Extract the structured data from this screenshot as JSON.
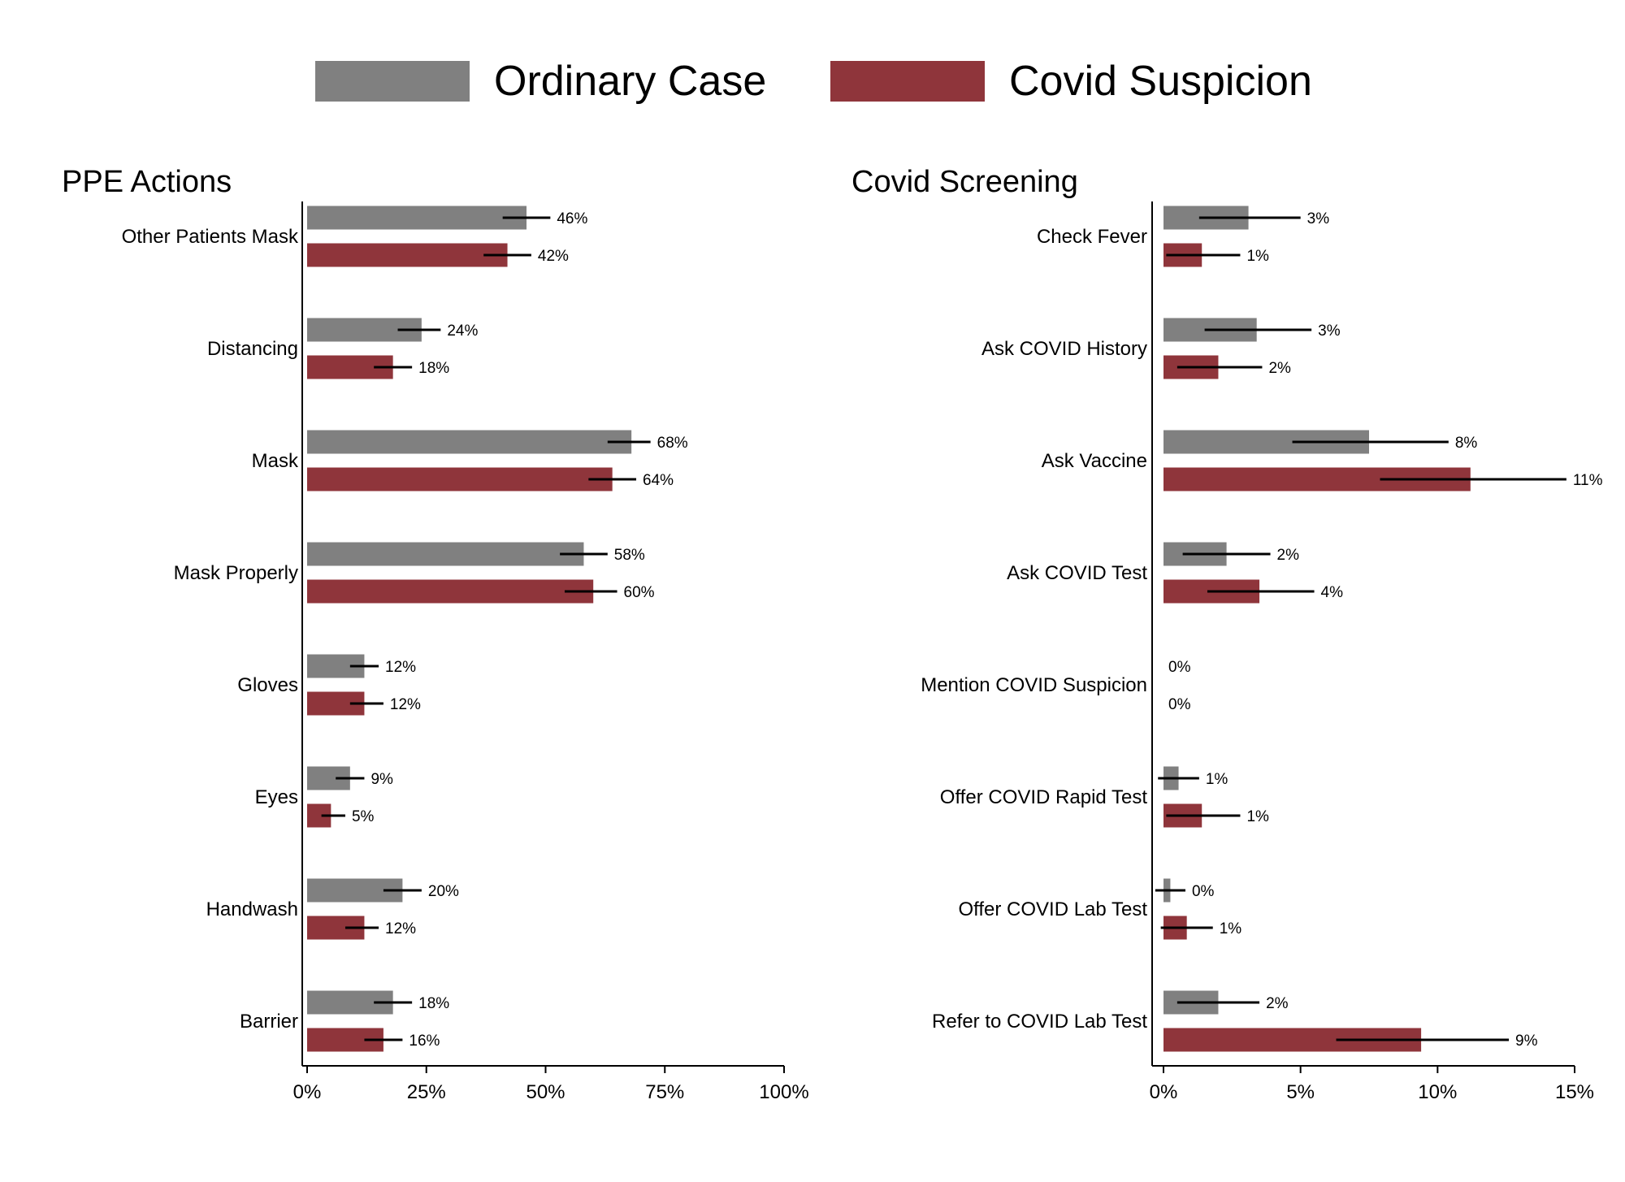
{
  "legend": {
    "items": [
      {
        "label": "Ordinary Case",
        "color": "#808080"
      },
      {
        "label": "Covid Suspicion",
        "color": "#8f353b"
      }
    ]
  },
  "chart_data": [
    {
      "type": "bar",
      "orientation": "horizontal",
      "title": "PPE Actions",
      "categories": [
        "Other Patients Mask",
        "Distancing",
        "Mask",
        "Mask Properly",
        "Gloves",
        "Eyes",
        "Handwash",
        "Barrier"
      ],
      "xlim": [
        0,
        100
      ],
      "xticks": [
        "0%",
        "25%",
        "50%",
        "75%",
        "100%"
      ],
      "series": [
        {
          "name": "Ordinary Case",
          "color": "#808080",
          "values": [
            46,
            24,
            68,
            58,
            12,
            9,
            20,
            18
          ],
          "labels": [
            "46%",
            "24%",
            "68%",
            "58%",
            "12%",
            "9%",
            "20%",
            "18%"
          ],
          "ci": [
            [
              41,
              51
            ],
            [
              19,
              28
            ],
            [
              63,
              72
            ],
            [
              53,
              63
            ],
            [
              9,
              15
            ],
            [
              6,
              12
            ],
            [
              16,
              24
            ],
            [
              14,
              22
            ]
          ]
        },
        {
          "name": "Covid Suspicion",
          "color": "#8f353b",
          "values": [
            42,
            18,
            64,
            60,
            12,
            5,
            12,
            16
          ],
          "labels": [
            "42%",
            "18%",
            "64%",
            "60%",
            "12%",
            "5%",
            "12%",
            "16%"
          ],
          "ci": [
            [
              37,
              47
            ],
            [
              14,
              22
            ],
            [
              59,
              69
            ],
            [
              54,
              65
            ],
            [
              9,
              16
            ],
            [
              3,
              8
            ],
            [
              8,
              15
            ],
            [
              12,
              20
            ]
          ]
        }
      ]
    },
    {
      "type": "bar",
      "orientation": "horizontal",
      "title": "Covid Screening",
      "categories": [
        "Check Fever",
        "Ask COVID History",
        "Ask Vaccine",
        "Ask COVID Test",
        "Mention COVID Suspicion",
        "Offer COVID Rapid Test",
        "Offer COVID Lab Test",
        "Refer to COVID Lab Test"
      ],
      "xlim": [
        0,
        15
      ],
      "xticks": [
        "0%",
        "5%",
        "10%",
        "15%"
      ],
      "series": [
        {
          "name": "Ordinary Case",
          "color": "#808080",
          "values": [
            3.1,
            3.4,
            7.5,
            2.3,
            0,
            0.55,
            0.25,
            2.0
          ],
          "labels": [
            "3%",
            "3%",
            "8%",
            "2%",
            "0%",
            "1%",
            "0%",
            "2%"
          ],
          "ci": [
            [
              1.3,
              5.0
            ],
            [
              1.5,
              5.4
            ],
            [
              4.7,
              10.4
            ],
            [
              0.7,
              3.9
            ],
            null,
            [
              -0.2,
              1.3
            ],
            [
              -0.3,
              0.8
            ],
            [
              0.5,
              3.5
            ]
          ]
        },
        {
          "name": "Covid Suspicion",
          "color": "#8f353b",
          "values": [
            1.4,
            2.0,
            11.2,
            3.5,
            0,
            1.4,
            0.85,
            9.4
          ],
          "labels": [
            "1%",
            "2%",
            "11%",
            "4%",
            "0%",
            "1%",
            "1%",
            "9%"
          ],
          "ci": [
            [
              0.1,
              2.8
            ],
            [
              0.5,
              3.6
            ],
            [
              7.9,
              14.7
            ],
            [
              1.6,
              5.5
            ],
            null,
            [
              0.1,
              2.8
            ],
            [
              -0.1,
              1.8
            ],
            [
              6.3,
              12.6
            ]
          ]
        }
      ]
    }
  ]
}
